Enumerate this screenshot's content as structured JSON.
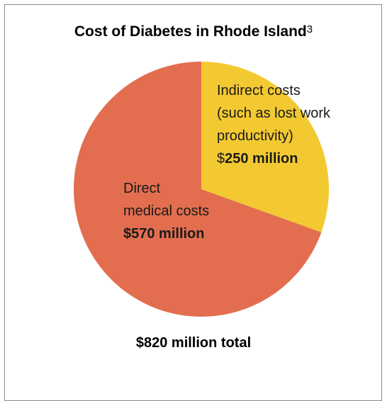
{
  "chart_data": {
    "type": "pie",
    "title": "Cost of Diabetes in Rhode Island",
    "title_superscript": "3",
    "slices": [
      {
        "name": "Indirect costs (such as lost work productivity)",
        "label_lines": [
          "Indirect costs",
          "(such as lost work",
          "productivity)"
        ],
        "value_prefix": "$",
        "value_text": "250 million",
        "value": 250,
        "color": "#f3c932"
      },
      {
        "name": "Direct medical costs",
        "label_lines": [
          "Direct",
          "medical costs"
        ],
        "value_text": "$570 million",
        "value": 570,
        "color": "#e36e4f"
      }
    ],
    "total_text": "$820 million total",
    "units": "million dollars"
  }
}
